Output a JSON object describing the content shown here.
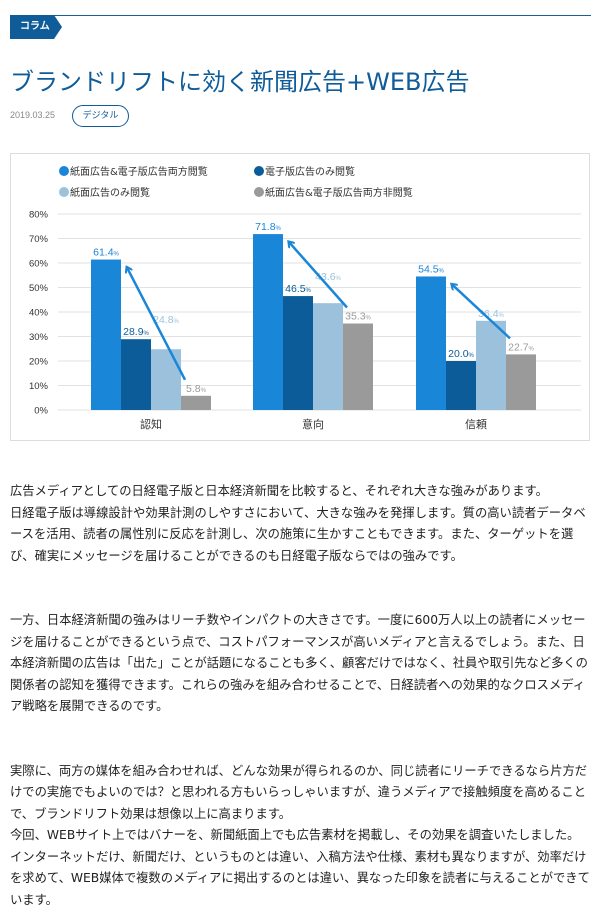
{
  "category_label": "コラム",
  "title": "ブランドリフトに効く新聞広告+WEB広告",
  "date": "2019.03.25",
  "tag": "デジタル",
  "chart_data": {
    "type": "bar",
    "categories": [
      "認知",
      "意向",
      "信頼"
    ],
    "series": [
      {
        "name": "紙面広告&電子版広告両方閲覧",
        "values": [
          61.4,
          71.8,
          54.5
        ],
        "color": "#1a86d8"
      },
      {
        "name": "電子版広告のみ閲覧",
        "values": [
          28.9,
          46.5,
          20.0
        ],
        "color": "#0b5c99"
      },
      {
        "name": "紙面広告のみ閲覧",
        "values": [
          24.8,
          43.6,
          36.4
        ],
        "color": "#9bc1dd"
      },
      {
        "name": "紙面広告&電子版広告両方非閲覧",
        "values": [
          5.8,
          35.3,
          22.7
        ],
        "color": "#9a9a9a"
      }
    ],
    "yticks": [
      "0%",
      "10%",
      "20%",
      "30%",
      "40%",
      "50%",
      "60%",
      "70%",
      "80%"
    ],
    "ylim": [
      0,
      80
    ],
    "value_suffix": "%",
    "legend": "top",
    "grid": true,
    "arrow_color": "#1a86d8"
  },
  "paragraphs": [
    [
      "広告メディアとしての日経電子版と日本経済新聞を比較すると、それぞれ大きな強みがあります。",
      "日経電子版は導線設計や効果計測のしやすさにおいて、大きな強みを発揮します。質の高い読者データベースを活用、読者の属性別に反応を計測し、次の施策に生かすこともできます。また、ターゲットを選び、確実にメッセージを届けることができるのも日経電子版ならではの強みです。"
    ],
    [
      "一方、日本経済新聞の強みはリーチ数やインパクトの大きさです。一度に600万人以上の読者にメッセージを届けることができるという点で、コストパフォーマンスが高いメディアと言えるでしょう。また、日本経済新聞の広告は「出た」ことが話題になることも多く、顧客だけではなく、社員や取引先など多くの関係者の認知を獲得できます。これらの強みを組み合わせることで、日経読者への効果的なクロスメディア戦略を展開できるのです。"
    ],
    [
      "実際に、両方の媒体を組み合わせれば、どんな効果が得られるのか、同じ読者にリーチできるなら片方だけでの実施でもよいのでは？と思われる方もいらっしゃいますが、違うメディアで接触頻度を高めることで、ブランドリフト効果は想像以上に高まります。",
      "今回、WEBサイト上ではバナーを、新聞紙面上でも広告素材を掲載し、その効果を調査いたしました。インターネットだけ、新聞だけ、というものとは違い、入稿方法や仕様、素材も異なりますが、効率だけを求めて、WEB媒体で複数のメディアに掲出するのとは違い、異なった印象を読者に与えることができています。"
    ]
  ]
}
